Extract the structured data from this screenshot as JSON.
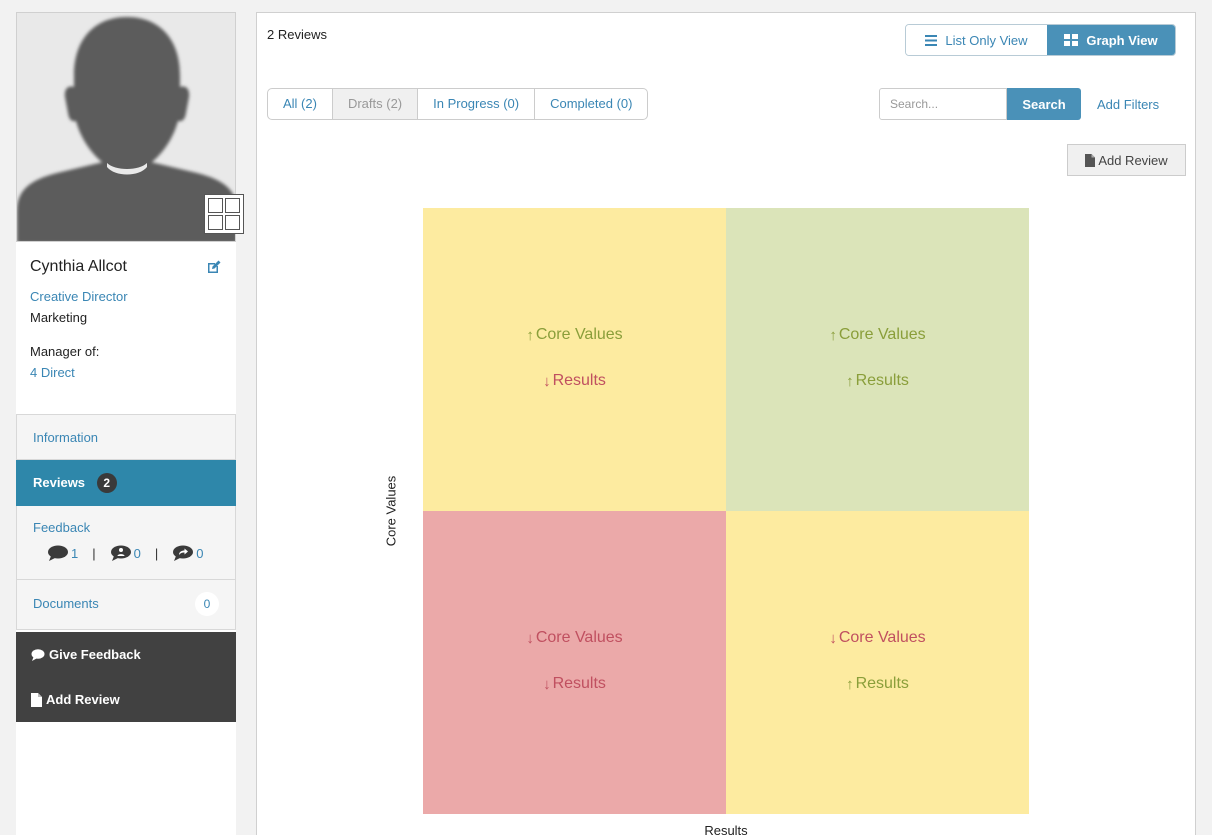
{
  "profile": {
    "name": "Cynthia Allcot",
    "title": "Creative Director",
    "department": "Marketing",
    "manager_label": "Manager of:",
    "direct_reports": "4 Direct"
  },
  "nav": {
    "information": "Information",
    "reviews": "Reviews",
    "reviews_count": "2",
    "feedback": "Feedback",
    "feedback_stats": {
      "comments": "1",
      "anonymous": "0",
      "shared": "0"
    },
    "documents": "Documents",
    "documents_count": "0"
  },
  "actions": {
    "give_feedback": "Give Feedback",
    "add_review": "Add Review"
  },
  "main": {
    "review_count": "2 Reviews",
    "view_toggle": {
      "list": "List Only View",
      "graph": "Graph View",
      "active": "graph"
    },
    "filters": [
      {
        "label": "All (2)",
        "state": "active"
      },
      {
        "label": "Drafts (2)",
        "state": "disabled"
      },
      {
        "label": "In Progress (0)",
        "state": "normal"
      },
      {
        "label": "Completed (0)",
        "state": "normal"
      }
    ],
    "search": {
      "placeholder": "Search...",
      "value": "",
      "button": "Search"
    },
    "add_filters": "Add Filters",
    "add_review": "Add Review"
  },
  "chart_data": {
    "type": "quadrant",
    "xlabel": "Results",
    "ylabel": "Core Values",
    "quadrants": [
      {
        "position": "top-left",
        "color": "#fdeba0",
        "lines": [
          {
            "dir": "up",
            "text": "Core Values"
          },
          {
            "dir": "down",
            "text": "Results"
          }
        ]
      },
      {
        "position": "top-right",
        "color": "#dbe4b9",
        "lines": [
          {
            "dir": "up",
            "text": "Core Values"
          },
          {
            "dir": "up",
            "text": "Results"
          }
        ]
      },
      {
        "position": "bottom-left",
        "color": "#eba9a9",
        "lines": [
          {
            "dir": "down",
            "text": "Core Values"
          },
          {
            "dir": "down",
            "text": "Results"
          }
        ]
      },
      {
        "position": "bottom-right",
        "color": "#fdeba0",
        "lines": [
          {
            "dir": "down",
            "text": "Core Values"
          },
          {
            "dir": "up",
            "text": "Results"
          }
        ]
      }
    ],
    "colors": {
      "up": "#8a9e3a",
      "down": "#c05060"
    }
  }
}
